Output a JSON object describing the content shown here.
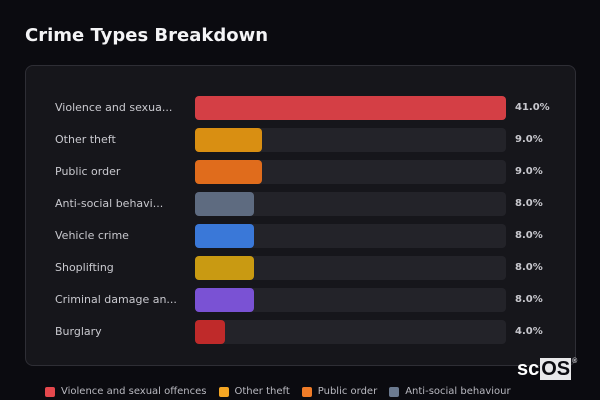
{
  "title": "Crime Types Breakdown",
  "chart_data": {
    "type": "bar",
    "orientation": "horizontal",
    "title": "Crime Types Breakdown",
    "categories": [
      "Violence and sexual offences",
      "Other theft",
      "Public order",
      "Anti-social behaviour",
      "Vehicle crime",
      "Shoplifting",
      "Criminal damage and arson",
      "Burglary"
    ],
    "display_labels": [
      "Violence and sexua...",
      "Other theft",
      "Public order",
      "Anti-social behavi...",
      "Vehicle crime",
      "Shoplifting",
      "Criminal damage an...",
      "Burglary"
    ],
    "values": [
      41.0,
      9.0,
      9.0,
      8.0,
      8.0,
      8.0,
      8.0,
      4.0
    ],
    "value_labels": [
      "41.0%",
      "9.0%",
      "9.0%",
      "8.0%",
      "8.0%",
      "8.0%",
      "8.0%",
      "4.0%"
    ],
    "colors": [
      "#d43f45",
      "#d98f12",
      "#e06c1c",
      "#5e6b80",
      "#3a78d8",
      "#c99a12",
      "#7a52d4",
      "#bf2a2a"
    ],
    "unit": "%",
    "xlim": [
      0,
      41
    ],
    "grid": false,
    "legend_position": "bottom"
  },
  "rows": [
    {
      "label": "Violence and sexua...",
      "pct": "41.0%",
      "value": 41.0,
      "color": "#d43f45"
    },
    {
      "label": "Other theft",
      "pct": "9.0%",
      "value": 9.0,
      "color": "#d98f12"
    },
    {
      "label": "Public order",
      "pct": "9.0%",
      "value": 9.0,
      "color": "#e06c1c"
    },
    {
      "label": "Anti-social behavi...",
      "pct": "8.0%",
      "value": 8.0,
      "color": "#5e6b80"
    },
    {
      "label": "Vehicle crime",
      "pct": "8.0%",
      "value": 8.0,
      "color": "#3a78d8"
    },
    {
      "label": "Shoplifting",
      "pct": "8.0%",
      "value": 8.0,
      "color": "#c99a12"
    },
    {
      "label": "Criminal damage an...",
      "pct": "8.0%",
      "value": 8.0,
      "color": "#7a52d4"
    },
    {
      "label": "Burglary",
      "pct": "4.0%",
      "value": 4.0,
      "color": "#bf2a2a"
    }
  ],
  "legend": [
    {
      "label": "Violence and sexual offences",
      "color": "#e5484d"
    },
    {
      "label": "Other theft",
      "color": "#f5a623"
    },
    {
      "label": "Public order",
      "color": "#f07c28"
    },
    {
      "label": "Anti-social behaviour",
      "color": "#6b7a90"
    }
  ],
  "watermark": {
    "prefix": "sc",
    "boxed": "OS",
    "mark": "®"
  }
}
